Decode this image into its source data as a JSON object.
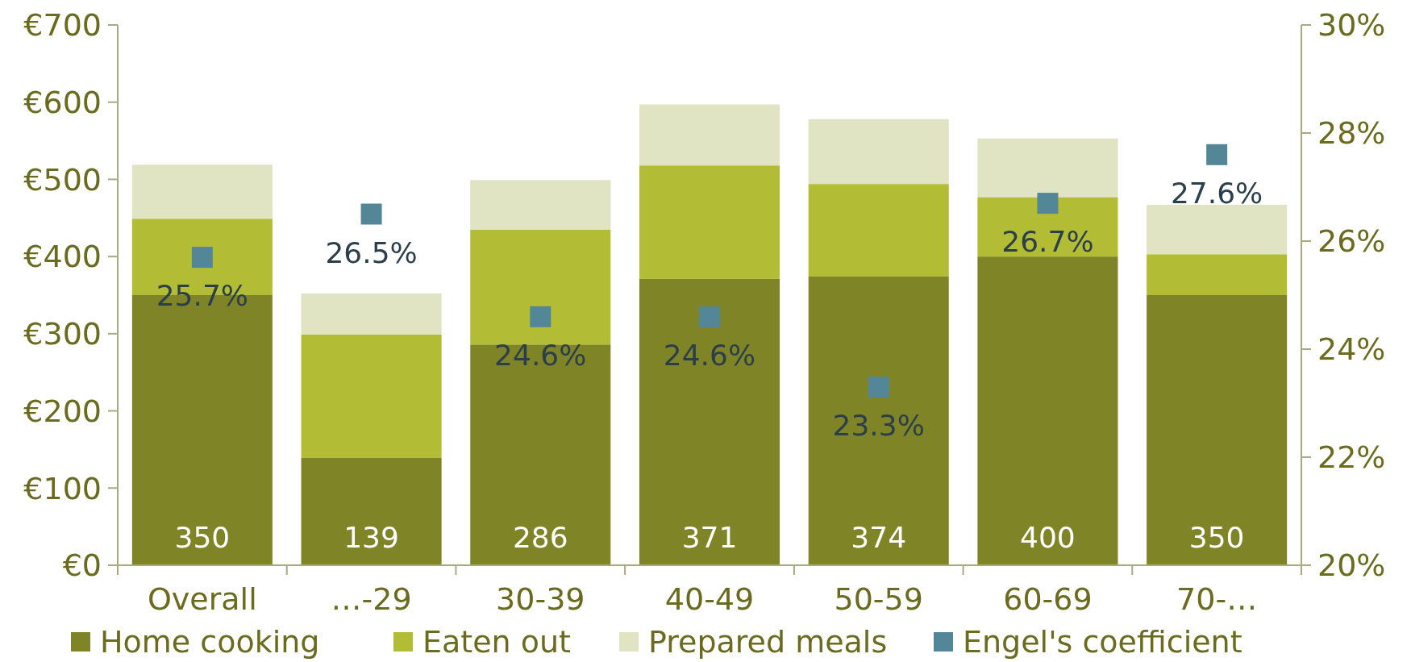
{
  "chart_data": {
    "type": "bar",
    "stacked": true,
    "categories": [
      "Overall",
      "…-29",
      "30-39",
      "40-49",
      "50-59",
      "60-69",
      "70-…"
    ],
    "series": [
      {
        "name": "Home cooking",
        "color": "#7f8427",
        "values": [
          350,
          139,
          286,
          371,
          374,
          400,
          350
        ],
        "value_labels": [
          "350",
          "139",
          "286",
          "371",
          "374",
          "400",
          "350"
        ]
      },
      {
        "name": "Eaten out",
        "color": "#b2bd35",
        "values": [
          99,
          160,
          149,
          147,
          120,
          77,
          53
        ]
      },
      {
        "name": "Prepared meals",
        "color": "#e0e4c3",
        "values": [
          70,
          53,
          64,
          79,
          84,
          76,
          64
        ]
      },
      {
        "name": "Engel's coefficient",
        "type": "scatter",
        "axis": "y2",
        "color": "#538797",
        "marker": "square",
        "values": [
          25.7,
          26.5,
          24.6,
          24.6,
          23.3,
          26.7,
          27.6
        ],
        "value_labels": [
          "25.7%",
          "26.5%",
          "24.6%",
          "24.6%",
          "23.3%",
          "26.7%",
          "27.6%"
        ]
      }
    ],
    "ylim": [
      0,
      700
    ],
    "yticks": [
      {
        "value": 0,
        "label": "€0"
      },
      {
        "value": 100,
        "label": "€100"
      },
      {
        "value": 200,
        "label": "€200"
      },
      {
        "value": 300,
        "label": "€300"
      },
      {
        "value": 400,
        "label": "€400"
      },
      {
        "value": 500,
        "label": "€500"
      },
      {
        "value": 600,
        "label": "€600"
      },
      {
        "value": 700,
        "label": "€700"
      }
    ],
    "y2lim": [
      20,
      30
    ],
    "y2ticks": [
      {
        "value": 20,
        "label": "20%"
      },
      {
        "value": 22,
        "label": "22%"
      },
      {
        "value": 24,
        "label": "24%"
      },
      {
        "value": 26,
        "label": "26%"
      },
      {
        "value": 28,
        "label": "28%"
      },
      {
        "value": 30,
        "label": "30%"
      }
    ],
    "grid": false,
    "legend": "bottom"
  }
}
